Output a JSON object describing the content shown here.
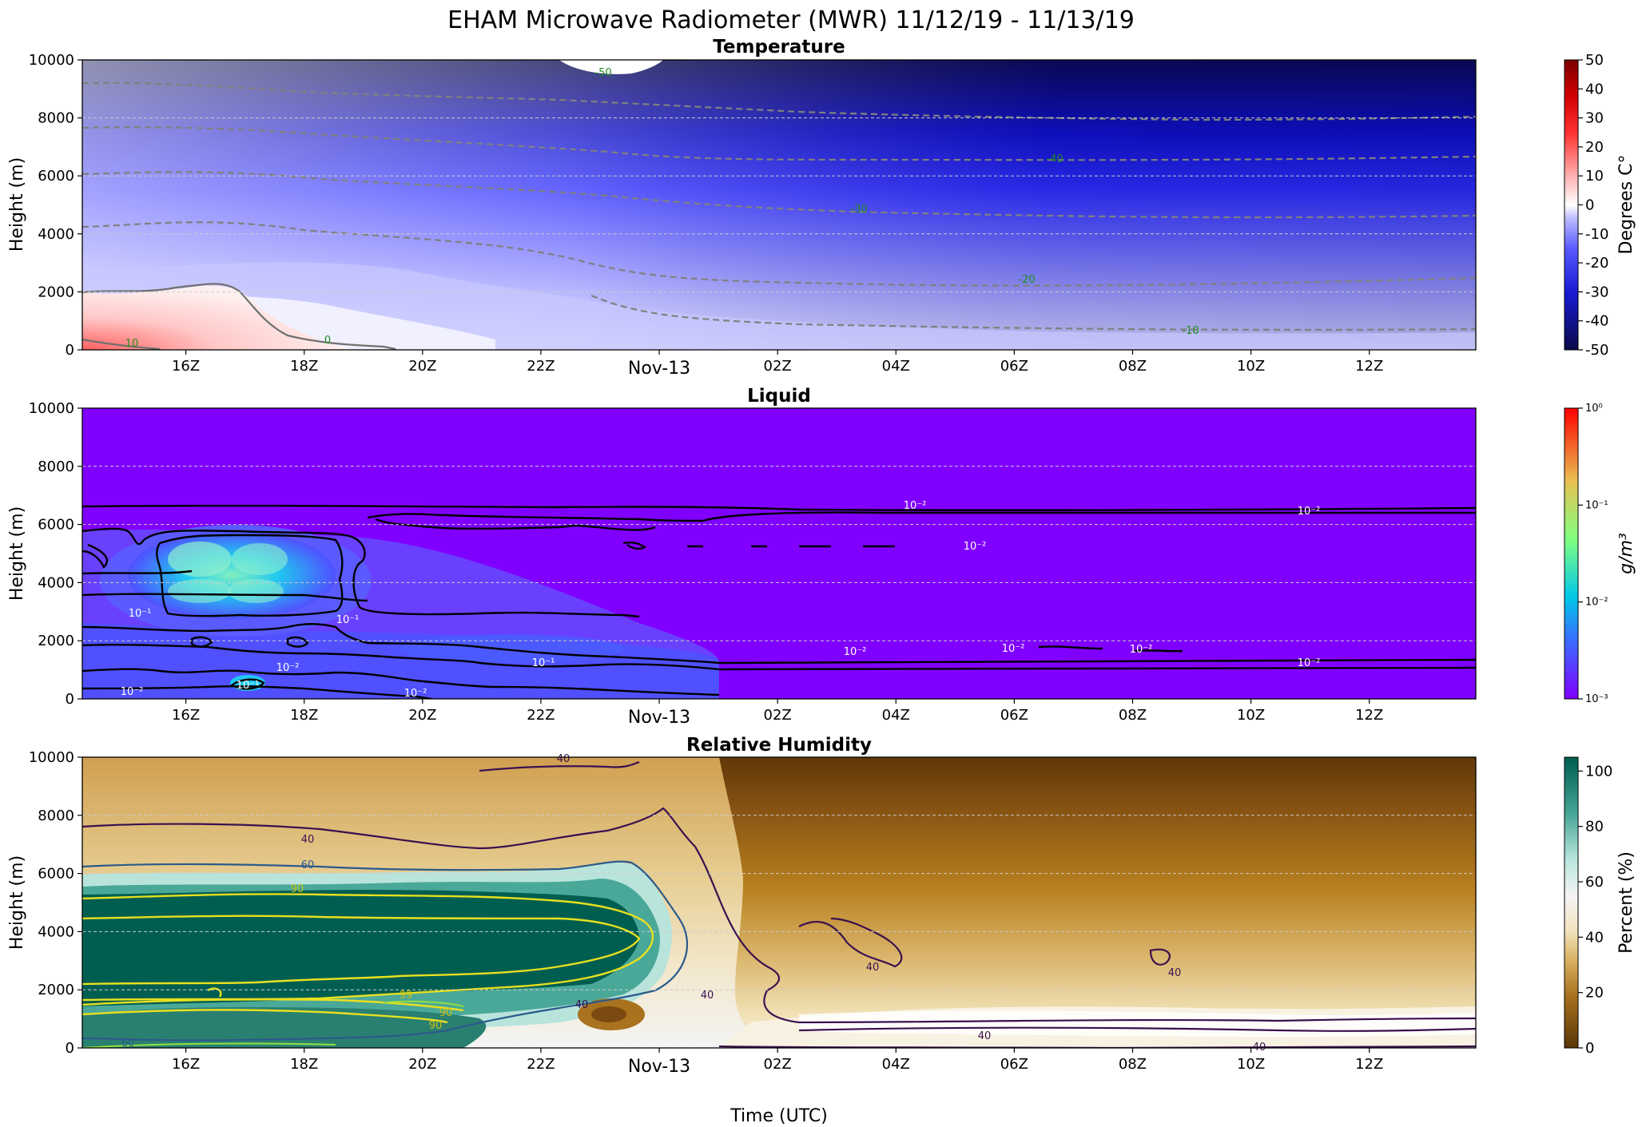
{
  "title": "EHAM Microwave Radiometer (MWR) 11/12/19 - 11/13/19",
  "xlabel": "Time (UTC)",
  "chart_data": [
    {
      "type": "heatmap",
      "title": "Temperature",
      "ylabel": "Height (m)",
      "ylim": [
        0,
        10000
      ],
      "yticks": [
        "0",
        "2000",
        "4000",
        "6000",
        "8000",
        "10000"
      ],
      "xticks": [
        "16Z",
        "18Z",
        "20Z",
        "22Z",
        "Nov-13",
        "02Z",
        "04Z",
        "06Z",
        "08Z",
        "10Z",
        "12Z"
      ],
      "grid": "y dashed",
      "colorbar": {
        "label": "Degrees C°",
        "ticks": [
          "50",
          "40",
          "30",
          "20",
          "10",
          "0",
          "-10",
          "-20",
          "-30",
          "-40",
          "-50"
        ],
        "range": [
          -50,
          50
        ],
        "colors": [
          "#0a0a4a",
          "#1a1ad6",
          "#5a5aff",
          "#b8b8ff",
          "#ffffff",
          "#ffb0b0",
          "#ff3030",
          "#c00000",
          "#7a0000"
        ]
      },
      "contours": [
        {
          "level": -50,
          "label": "-50"
        },
        {
          "level": -40,
          "label": "-40"
        },
        {
          "level": -30,
          "label": "-30"
        },
        {
          "level": -20,
          "label": "-20"
        },
        {
          "level": -10,
          "label": "-10"
        },
        {
          "level": 0,
          "label": "0"
        },
        {
          "level": 10,
          "label": "10"
        }
      ]
    },
    {
      "type": "heatmap",
      "title": "Liquid",
      "ylabel": "Height (m)",
      "ylim": [
        0,
        10000
      ],
      "yticks": [
        "0",
        "2000",
        "4000",
        "6000",
        "8000",
        "10000"
      ],
      "xticks": [
        "16Z",
        "18Z",
        "20Z",
        "22Z",
        "Nov-13",
        "02Z",
        "04Z",
        "06Z",
        "08Z",
        "10Z",
        "12Z"
      ],
      "grid": "y dashed",
      "scale": "log",
      "colorbar": {
        "label": "g/m³",
        "ticks": [
          "10⁰",
          "10⁻¹",
          "10⁻²",
          "10⁻³"
        ],
        "range": [
          0.001,
          1
        ],
        "colors": [
          "#8000ff",
          "#3a6cff",
          "#00c8e8",
          "#80ff80",
          "#e8c050",
          "#ff0000"
        ]
      },
      "contours": [
        {
          "level": 0.1,
          "label": "10⁻¹"
        },
        {
          "level": 0.01,
          "label": "10⁻²"
        }
      ]
    },
    {
      "type": "heatmap",
      "title": "Relative Humidity",
      "ylabel": "Height (m)",
      "ylim": [
        0,
        10000
      ],
      "yticks": [
        "0",
        "2000",
        "4000",
        "6000",
        "8000",
        "10000"
      ],
      "xticks": [
        "16Z",
        "18Z",
        "20Z",
        "22Z",
        "Nov-13",
        "02Z",
        "04Z",
        "06Z",
        "08Z",
        "10Z",
        "12Z"
      ],
      "grid": "y dashed",
      "colorbar": {
        "label": "Percent (%)",
        "ticks": [
          "100",
          "80",
          "60",
          "40",
          "20",
          "0"
        ],
        "range": [
          0,
          105
        ],
        "colors": [
          "#5a3608",
          "#a8721e",
          "#d8b060",
          "#f2e2bc",
          "#f4f4f4",
          "#b8e4dc",
          "#4aa898",
          "#005e50"
        ]
      },
      "contours": [
        {
          "level": 40,
          "label": "40",
          "color": "#3a1050"
        },
        {
          "level": 60,
          "label": "60",
          "color": "#2a5a8a"
        },
        {
          "level": 90,
          "label": "90",
          "color": "#e8e020"
        },
        {
          "level": 99,
          "label": "99",
          "color": "#90e040"
        }
      ]
    }
  ]
}
